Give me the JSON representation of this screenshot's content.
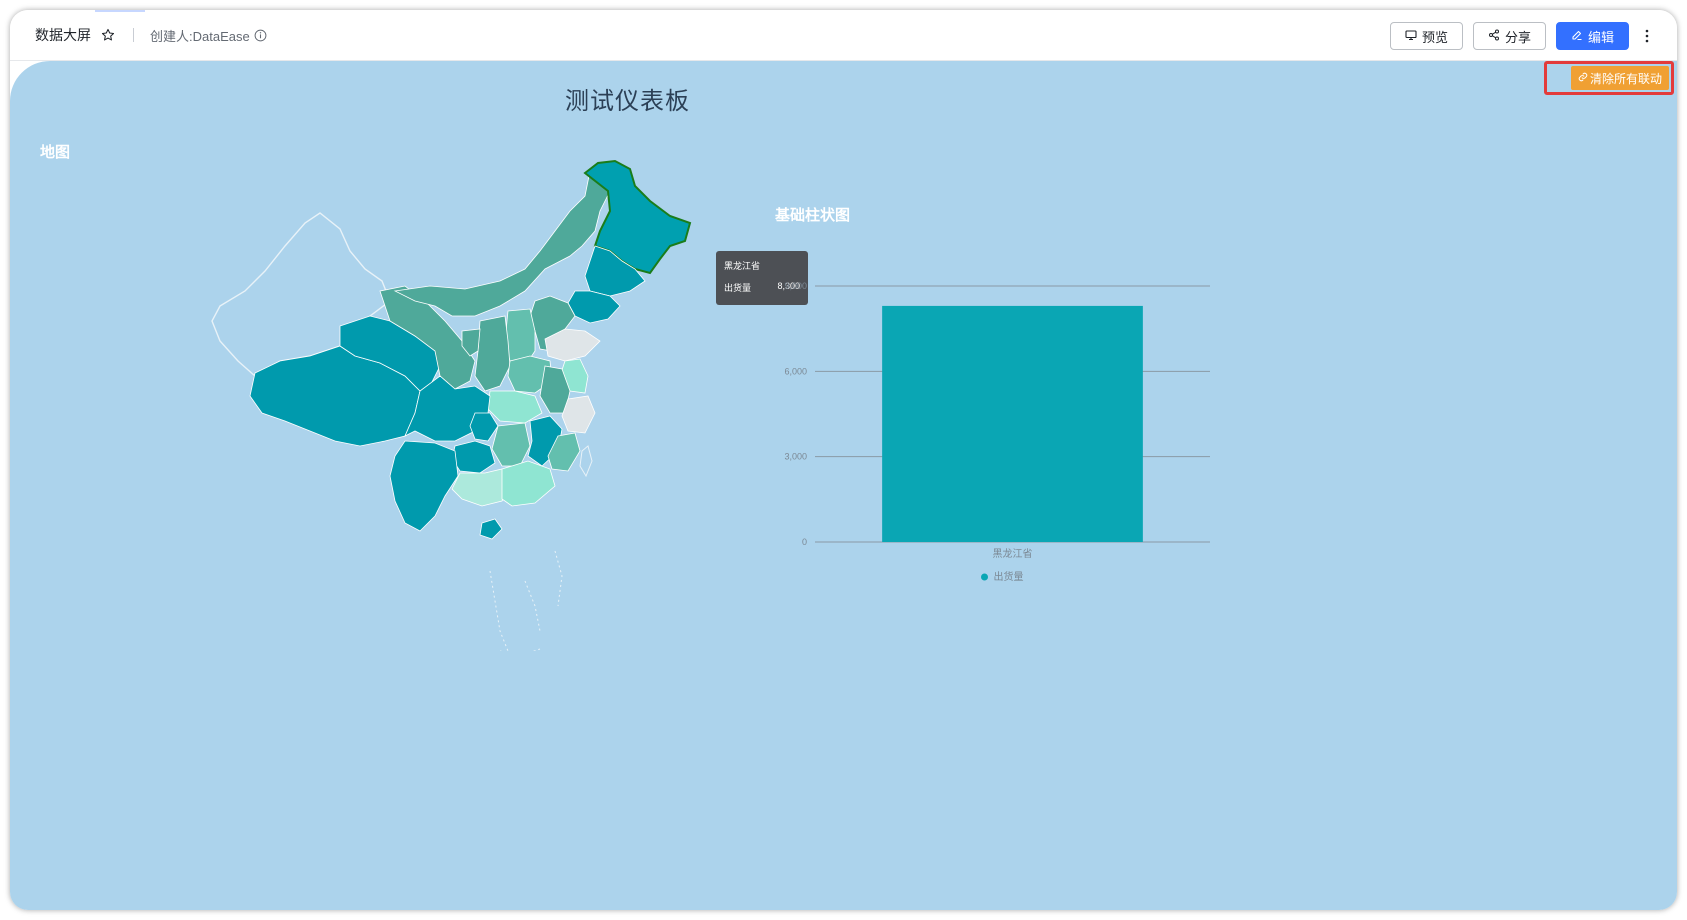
{
  "header": {
    "app_title": "数据大屏",
    "creator": "创建人:DataEase",
    "buttons": {
      "preview": "预览",
      "share": "分享",
      "edit": "编辑"
    },
    "icons": [
      "star-icon",
      "info-icon",
      "monitor-icon",
      "share-icon",
      "edit-icon",
      "more-vertical-icon"
    ],
    "accent_color": "#3370ff"
  },
  "dashboard": {
    "title": "测试仪表板",
    "clear_linkage_button": "清除所有联动",
    "clear_button_color": "#f0a033",
    "canvas_color": "#acd3ec"
  },
  "map_panel": {
    "title": "地图",
    "highlighted_region": "黑龙江省",
    "tooltip": {
      "region": "黑龙江省",
      "metric": "出货量",
      "value": "8,300"
    },
    "colors": {
      "dark": "#009aad",
      "medium": "#4fa99a",
      "light": "#63bfae",
      "pale": "#8fe5d2",
      "empty": "#dfe5e8",
      "highlight_border": "#1a7d1a"
    }
  },
  "bar_panel": {
    "title": "基础柱状图"
  },
  "chart_data": {
    "type": "bar",
    "categories": [
      "黑龙江省"
    ],
    "series": [
      {
        "name": "出货量",
        "values": [
          8300
        ]
      }
    ],
    "ylim": [
      0,
      9000
    ],
    "y_ticks": [
      "0",
      "3,000",
      "6,000",
      "9,000"
    ],
    "grid": true,
    "legend_position": "bottom-center",
    "bar_color": "#0aa6b4"
  }
}
